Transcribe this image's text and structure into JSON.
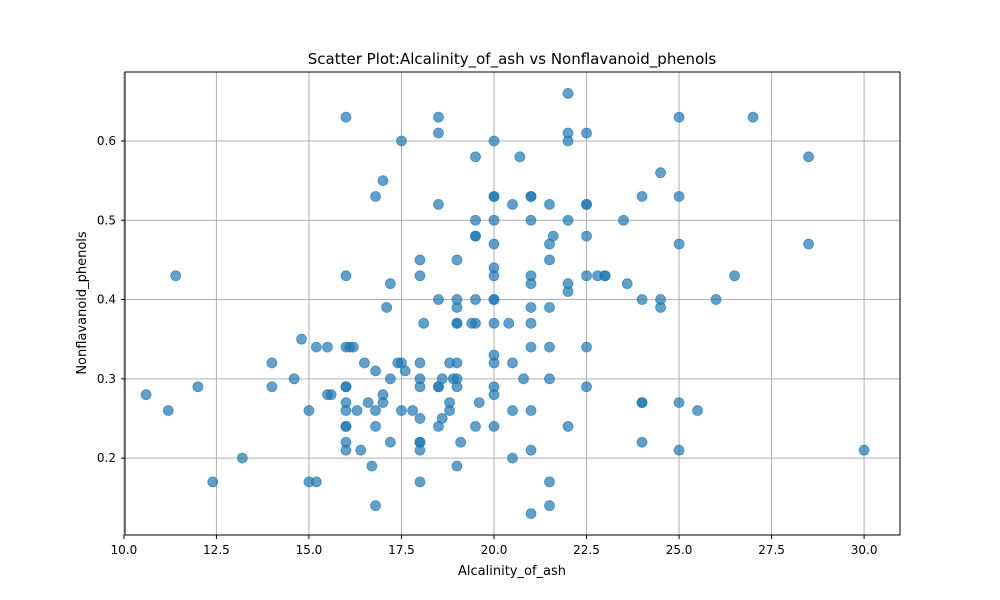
{
  "chart_data": {
    "type": "scatter",
    "title": "Scatter Plot:Alcalinity_of_ash vs Nonflavanoid_phenols",
    "xlabel": "Alcalinity_of_ash",
    "ylabel": "Nonflavanoid_phenols",
    "xlim": [
      10.03,
      30.97
    ],
    "ylim": [
      0.103,
      0.687
    ],
    "xticks": [
      10.0,
      12.5,
      15.0,
      17.5,
      20.0,
      22.5,
      25.0,
      27.5,
      30.0
    ],
    "xtick_labels": [
      "10.0",
      "12.5",
      "15.0",
      "17.5",
      "20.0",
      "22.5",
      "25.0",
      "27.5",
      "30.0"
    ],
    "yticks": [
      0.2,
      0.3,
      0.4,
      0.5,
      0.6
    ],
    "ytick_labels": [
      "0.2",
      "0.3",
      "0.4",
      "0.5",
      "0.6"
    ],
    "grid": true,
    "marker_color": "#1f77b4",
    "marker_alpha": 0.7,
    "points": [
      [
        10.6,
        0.28
      ],
      [
        11.2,
        0.26
      ],
      [
        11.4,
        0.43
      ],
      [
        12.0,
        0.29
      ],
      [
        12.4,
        0.17
      ],
      [
        13.2,
        0.2
      ],
      [
        14.0,
        0.32
      ],
      [
        14.0,
        0.29
      ],
      [
        14.6,
        0.3
      ],
      [
        14.8,
        0.35
      ],
      [
        15.0,
        0.26
      ],
      [
        15.0,
        0.17
      ],
      [
        15.2,
        0.17
      ],
      [
        15.2,
        0.34
      ],
      [
        15.5,
        0.34
      ],
      [
        15.5,
        0.28
      ],
      [
        15.6,
        0.28
      ],
      [
        16.0,
        0.63
      ],
      [
        16.0,
        0.43
      ],
      [
        16.0,
        0.34
      ],
      [
        16.0,
        0.29
      ],
      [
        16.0,
        0.27
      ],
      [
        16.0,
        0.26
      ],
      [
        16.0,
        0.24
      ],
      [
        16.0,
        0.24
      ],
      [
        16.0,
        0.22
      ],
      [
        16.0,
        0.21
      ],
      [
        16.0,
        0.29
      ],
      [
        16.1,
        0.34
      ],
      [
        16.2,
        0.34
      ],
      [
        16.3,
        0.26
      ],
      [
        16.4,
        0.21
      ],
      [
        16.5,
        0.32
      ],
      [
        16.6,
        0.27
      ],
      [
        16.7,
        0.19
      ],
      [
        16.8,
        0.53
      ],
      [
        16.8,
        0.31
      ],
      [
        16.8,
        0.26
      ],
      [
        16.8,
        0.24
      ],
      [
        16.8,
        0.14
      ],
      [
        17.0,
        0.55
      ],
      [
        17.0,
        0.28
      ],
      [
        17.0,
        0.27
      ],
      [
        17.1,
        0.39
      ],
      [
        17.2,
        0.42
      ],
      [
        17.2,
        0.3
      ],
      [
        17.2,
        0.22
      ],
      [
        17.4,
        0.32
      ],
      [
        17.5,
        0.6
      ],
      [
        17.5,
        0.32
      ],
      [
        17.5,
        0.26
      ],
      [
        17.6,
        0.31
      ],
      [
        17.8,
        0.26
      ],
      [
        18.0,
        0.45
      ],
      [
        18.0,
        0.43
      ],
      [
        18.0,
        0.32
      ],
      [
        18.0,
        0.3
      ],
      [
        18.0,
        0.29
      ],
      [
        18.0,
        0.25
      ],
      [
        18.0,
        0.22
      ],
      [
        18.0,
        0.22
      ],
      [
        18.0,
        0.21
      ],
      [
        18.0,
        0.17
      ],
      [
        18.1,
        0.37
      ],
      [
        18.5,
        0.63
      ],
      [
        18.5,
        0.61
      ],
      [
        18.5,
        0.52
      ],
      [
        18.5,
        0.4
      ],
      [
        18.5,
        0.29
      ],
      [
        18.5,
        0.29
      ],
      [
        18.5,
        0.24
      ],
      [
        18.6,
        0.3
      ],
      [
        18.6,
        0.25
      ],
      [
        18.8,
        0.32
      ],
      [
        18.8,
        0.27
      ],
      [
        18.8,
        0.26
      ],
      [
        18.9,
        0.3
      ],
      [
        19.0,
        0.45
      ],
      [
        19.0,
        0.4
      ],
      [
        19.0,
        0.39
      ],
      [
        19.0,
        0.37
      ],
      [
        19.0,
        0.37
      ],
      [
        19.0,
        0.32
      ],
      [
        19.0,
        0.3
      ],
      [
        19.0,
        0.29
      ],
      [
        19.0,
        0.19
      ],
      [
        19.1,
        0.22
      ],
      [
        19.4,
        0.37
      ],
      [
        19.5,
        0.58
      ],
      [
        19.5,
        0.5
      ],
      [
        19.5,
        0.48
      ],
      [
        19.5,
        0.48
      ],
      [
        19.5,
        0.4
      ],
      [
        19.5,
        0.37
      ],
      [
        19.5,
        0.24
      ],
      [
        19.6,
        0.27
      ],
      [
        20.0,
        0.6
      ],
      [
        20.0,
        0.53
      ],
      [
        20.0,
        0.53
      ],
      [
        20.0,
        0.5
      ],
      [
        20.0,
        0.47
      ],
      [
        20.0,
        0.44
      ],
      [
        20.0,
        0.43
      ],
      [
        20.0,
        0.4
      ],
      [
        20.0,
        0.4
      ],
      [
        20.0,
        0.37
      ],
      [
        20.0,
        0.33
      ],
      [
        20.0,
        0.32
      ],
      [
        20.0,
        0.29
      ],
      [
        20.0,
        0.28
      ],
      [
        20.0,
        0.24
      ],
      [
        20.4,
        0.37
      ],
      [
        20.5,
        0.52
      ],
      [
        20.5,
        0.32
      ],
      [
        20.5,
        0.26
      ],
      [
        20.5,
        0.2
      ],
      [
        20.7,
        0.58
      ],
      [
        20.8,
        0.3
      ],
      [
        21.0,
        0.53
      ],
      [
        21.0,
        0.53
      ],
      [
        21.0,
        0.5
      ],
      [
        21.0,
        0.43
      ],
      [
        21.0,
        0.42
      ],
      [
        21.0,
        0.39
      ],
      [
        21.0,
        0.37
      ],
      [
        21.0,
        0.34
      ],
      [
        21.0,
        0.26
      ],
      [
        21.0,
        0.21
      ],
      [
        21.0,
        0.13
      ],
      [
        21.5,
        0.52
      ],
      [
        21.5,
        0.47
      ],
      [
        21.5,
        0.45
      ],
      [
        21.5,
        0.39
      ],
      [
        21.5,
        0.34
      ],
      [
        21.5,
        0.3
      ],
      [
        21.5,
        0.17
      ],
      [
        21.5,
        0.14
      ],
      [
        21.6,
        0.48
      ],
      [
        22.0,
        0.66
      ],
      [
        22.0,
        0.61
      ],
      [
        22.0,
        0.6
      ],
      [
        22.0,
        0.5
      ],
      [
        22.0,
        0.42
      ],
      [
        22.0,
        0.41
      ],
      [
        22.0,
        0.24
      ],
      [
        22.5,
        0.61
      ],
      [
        22.5,
        0.52
      ],
      [
        22.5,
        0.52
      ],
      [
        22.5,
        0.48
      ],
      [
        22.5,
        0.43
      ],
      [
        22.5,
        0.34
      ],
      [
        22.5,
        0.29
      ],
      [
        22.8,
        0.43
      ],
      [
        23.0,
        0.43
      ],
      [
        23.0,
        0.43
      ],
      [
        23.5,
        0.5
      ],
      [
        23.6,
        0.42
      ],
      [
        24.0,
        0.53
      ],
      [
        24.0,
        0.4
      ],
      [
        24.0,
        0.27
      ],
      [
        24.0,
        0.27
      ],
      [
        24.0,
        0.22
      ],
      [
        24.5,
        0.56
      ],
      [
        24.5,
        0.4
      ],
      [
        24.5,
        0.39
      ],
      [
        25.0,
        0.63
      ],
      [
        25.0,
        0.53
      ],
      [
        25.0,
        0.47
      ],
      [
        25.0,
        0.27
      ],
      [
        25.0,
        0.21
      ],
      [
        25.5,
        0.26
      ],
      [
        26.0,
        0.4
      ],
      [
        26.5,
        0.43
      ],
      [
        27.0,
        0.63
      ],
      [
        28.5,
        0.58
      ],
      [
        28.5,
        0.47
      ],
      [
        30.0,
        0.21
      ]
    ]
  }
}
